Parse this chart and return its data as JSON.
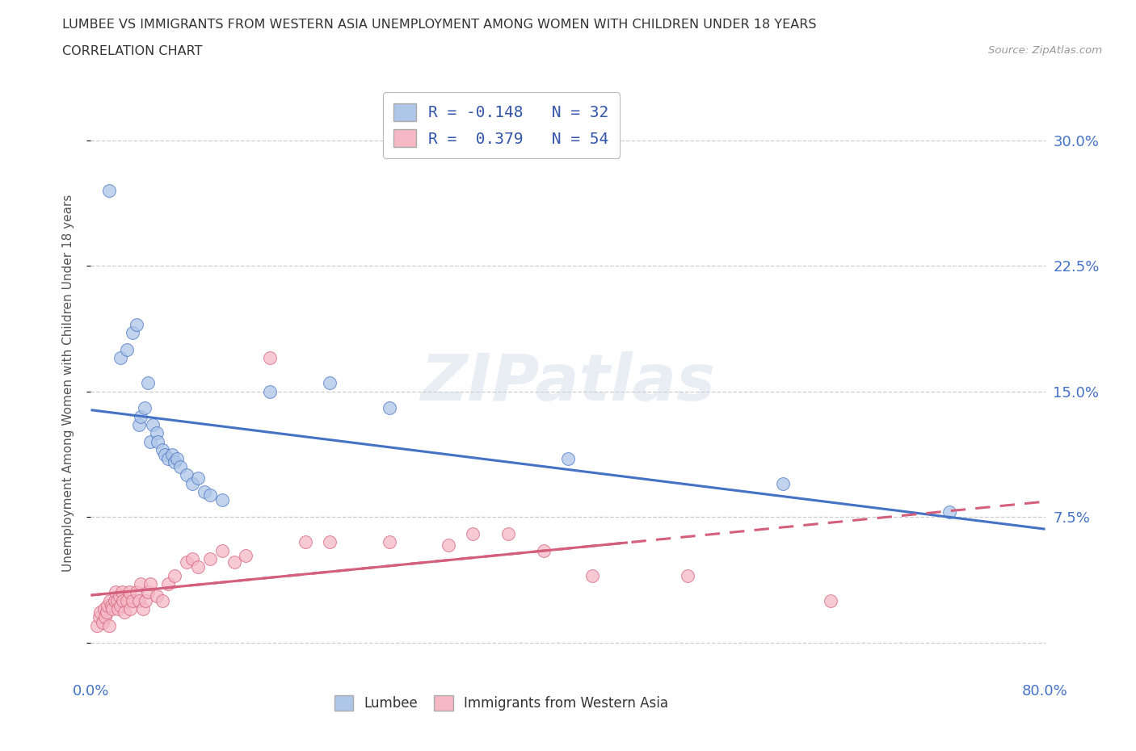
{
  "title": "LUMBEE VS IMMIGRANTS FROM WESTERN ASIA UNEMPLOYMENT AMONG WOMEN WITH CHILDREN UNDER 18 YEARS",
  "subtitle": "CORRELATION CHART",
  "source": "Source: ZipAtlas.com",
  "ylabel": "Unemployment Among Women with Children Under 18 years",
  "xlim": [
    0.0,
    0.8
  ],
  "ylim": [
    -0.02,
    0.33
  ],
  "yticks": [
    0.0,
    0.075,
    0.15,
    0.225,
    0.3
  ],
  "ytick_labels": [
    "",
    "7.5%",
    "15.0%",
    "22.5%",
    "30.0%"
  ],
  "xticks": [
    0.0,
    0.2,
    0.4,
    0.6,
    0.8
  ],
  "xtick_labels": [
    "0.0%",
    "",
    "",
    "",
    "80.0%"
  ],
  "legend_r1": "R = -0.148   N = 32",
  "legend_r2": "R =  0.379   N = 54",
  "color_blue": "#aec6e8",
  "color_pink": "#f5b8c4",
  "line_blue": "#4472c4",
  "line_pink": "#d45f7a",
  "watermark": "ZIPatlas",
  "lumbee_points": [
    [
      0.015,
      0.27
    ],
    [
      0.025,
      0.17
    ],
    [
      0.03,
      0.175
    ],
    [
      0.035,
      0.185
    ],
    [
      0.038,
      0.19
    ],
    [
      0.04,
      0.13
    ],
    [
      0.042,
      0.135
    ],
    [
      0.045,
      0.14
    ],
    [
      0.048,
      0.155
    ],
    [
      0.05,
      0.12
    ],
    [
      0.052,
      0.13
    ],
    [
      0.055,
      0.125
    ],
    [
      0.056,
      0.12
    ],
    [
      0.06,
      0.115
    ],
    [
      0.062,
      0.112
    ],
    [
      0.065,
      0.11
    ],
    [
      0.068,
      0.112
    ],
    [
      0.07,
      0.108
    ],
    [
      0.072,
      0.11
    ],
    [
      0.075,
      0.105
    ],
    [
      0.08,
      0.1
    ],
    [
      0.085,
      0.095
    ],
    [
      0.09,
      0.098
    ],
    [
      0.095,
      0.09
    ],
    [
      0.1,
      0.088
    ],
    [
      0.11,
      0.085
    ],
    [
      0.15,
      0.15
    ],
    [
      0.2,
      0.155
    ],
    [
      0.25,
      0.14
    ],
    [
      0.4,
      0.11
    ],
    [
      0.58,
      0.095
    ],
    [
      0.72,
      0.078
    ]
  ],
  "western_asia_points": [
    [
      0.005,
      0.01
    ],
    [
      0.007,
      0.015
    ],
    [
      0.008,
      0.018
    ],
    [
      0.01,
      0.012
    ],
    [
      0.011,
      0.02
    ],
    [
      0.012,
      0.015
    ],
    [
      0.013,
      0.018
    ],
    [
      0.014,
      0.022
    ],
    [
      0.015,
      0.01
    ],
    [
      0.016,
      0.025
    ],
    [
      0.017,
      0.022
    ],
    [
      0.018,
      0.02
    ],
    [
      0.02,
      0.025
    ],
    [
      0.021,
      0.03
    ],
    [
      0.022,
      0.025
    ],
    [
      0.023,
      0.02
    ],
    [
      0.024,
      0.028
    ],
    [
      0.025,
      0.022
    ],
    [
      0.026,
      0.03
    ],
    [
      0.027,
      0.025
    ],
    [
      0.028,
      0.018
    ],
    [
      0.03,
      0.025
    ],
    [
      0.032,
      0.03
    ],
    [
      0.033,
      0.02
    ],
    [
      0.035,
      0.025
    ],
    [
      0.038,
      0.03
    ],
    [
      0.04,
      0.025
    ],
    [
      0.042,
      0.035
    ],
    [
      0.044,
      0.02
    ],
    [
      0.046,
      0.025
    ],
    [
      0.048,
      0.03
    ],
    [
      0.05,
      0.035
    ],
    [
      0.055,
      0.028
    ],
    [
      0.06,
      0.025
    ],
    [
      0.065,
      0.035
    ],
    [
      0.07,
      0.04
    ],
    [
      0.08,
      0.048
    ],
    [
      0.085,
      0.05
    ],
    [
      0.09,
      0.045
    ],
    [
      0.1,
      0.05
    ],
    [
      0.11,
      0.055
    ],
    [
      0.12,
      0.048
    ],
    [
      0.13,
      0.052
    ],
    [
      0.15,
      0.17
    ],
    [
      0.18,
      0.06
    ],
    [
      0.2,
      0.06
    ],
    [
      0.25,
      0.06
    ],
    [
      0.3,
      0.058
    ],
    [
      0.32,
      0.065
    ],
    [
      0.35,
      0.065
    ],
    [
      0.38,
      0.055
    ],
    [
      0.42,
      0.04
    ],
    [
      0.5,
      0.04
    ],
    [
      0.62,
      0.025
    ]
  ]
}
